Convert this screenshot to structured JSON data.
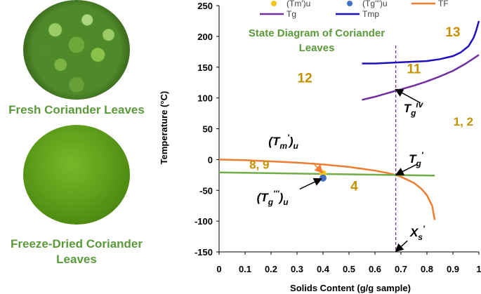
{
  "images": {
    "fresh_caption": "Fresh Coriander Leaves",
    "dried_caption": "Freeze-Dried Coriander Leaves"
  },
  "chart_data": {
    "type": "line",
    "title": "State Diagram of Coriander Leaves",
    "xlabel": "Solids Content (g/g sample)",
    "ylabel": "Temperature (°C)",
    "xlim": [
      0,
      1
    ],
    "ylim": [
      -150,
      250
    ],
    "x_ticks": [
      0,
      0.1,
      0.2,
      0.3,
      0.4,
      0.5,
      0.6,
      0.7,
      0.8,
      0.9,
      1
    ],
    "y_ticks": [
      -150,
      -100,
      -50,
      0,
      50,
      100,
      150,
      200,
      250
    ],
    "grid": false,
    "legend_position": "top",
    "colors": {
      "TF": "#ed7d31",
      "Tg": "#7030a0",
      "Tmp": "#1f0fbf",
      "Tm_u": "#f5c518",
      "Tg_u": "#4472c4",
      "line": "#70ad47",
      "region": "#c59100",
      "title": "#5b9a3b"
    },
    "series": [
      {
        "name": "TF",
        "color": "#ed7d31",
        "x": [
          0,
          0.1,
          0.2,
          0.3,
          0.4,
          0.5,
          0.55,
          0.6,
          0.65,
          0.68,
          0.7,
          0.75,
          0.78,
          0.8,
          0.82,
          0.83
        ],
        "y": [
          0,
          -1,
          -3,
          -5,
          -8,
          -12,
          -15,
          -18,
          -22,
          -25,
          -28,
          -38,
          -48,
          -58,
          -75,
          -98
        ]
      },
      {
        "name": "Tg",
        "color": "#7030a0",
        "x": [
          0.55,
          0.6,
          0.65,
          0.7,
          0.75,
          0.8,
          0.85,
          0.9,
          0.95,
          1.0
        ],
        "y": [
          97,
          102,
          108,
          114,
          120,
          127,
          135,
          144,
          156,
          170
        ]
      },
      {
        "name": "Tmp",
        "color": "#1f0fbf",
        "x": [
          0.55,
          0.6,
          0.65,
          0.7,
          0.75,
          0.8,
          0.85,
          0.9,
          0.93,
          0.96,
          0.98,
          0.99,
          1.0
        ],
        "y": [
          156,
          156,
          157,
          158,
          159,
          160,
          163,
          168,
          174,
          184,
          198,
          210,
          225
        ]
      },
      {
        "name": "",
        "color": "#70ad47",
        "x": [
          0,
          0.83
        ],
        "y": [
          -21,
          -26
        ]
      }
    ],
    "points": [
      {
        "name": "(Tm')u",
        "x": 0.4,
        "y": -23,
        "color": "#f5c518"
      },
      {
        "name": "(Tg''')u",
        "x": 0.4,
        "y": -30,
        "color": "#4472c4"
      }
    ],
    "vline": {
      "x": 0.68,
      "color": "#7030a0"
    },
    "legend": [
      {
        "label": "(Tm')u",
        "kind": "dot",
        "color": "#f5c518"
      },
      {
        "label": "(Tg''')u",
        "kind": "dot",
        "color": "#4472c4"
      },
      {
        "label": "TF",
        "kind": "line",
        "color": "#ed7d31"
      },
      {
        "label": "Tg",
        "kind": "line",
        "color": "#7030a0"
      },
      {
        "label": "Tmp",
        "kind": "line",
        "color": "#1f0fbf"
      }
    ],
    "region_labels": [
      {
        "text": "13",
        "x": 0.9,
        "y": 200
      },
      {
        "text": "11",
        "x": 0.75,
        "y": 140
      },
      {
        "text": "12",
        "x": 0.33,
        "y": 125
      },
      {
        "text": "1, 2",
        "x": 0.94,
        "y": 55
      },
      {
        "text": "8, 9",
        "x": 0.155,
        "y": -15
      },
      {
        "text": "4",
        "x": 0.52,
        "y": -50
      }
    ],
    "annotations": [
      {
        "id": "tg-iv",
        "main": "T",
        "sub": "g",
        "sup": "iv",
        "tx": 0.71,
        "ty": 77,
        "ax": 0.775,
        "ay": 92,
        "hx": 0.683,
        "hy": 113
      },
      {
        "id": "tg-prime",
        "main": "T",
        "sub": "g",
        "sup": "'",
        "tx": 0.73,
        "ty": -5,
        "ax": 0.76,
        "ay": -8,
        "hx": 0.685,
        "hy": -24
      },
      {
        "id": "tm-prime-u",
        "main": "(T",
        "sub": "m",
        "sup": "'",
        "end": ")u",
        "tx": 0.19,
        "ty": 23,
        "ax": 0.36,
        "ay": -5,
        "hx": 0.395,
        "hy": -20
      },
      {
        "id": "tg3-u",
        "main": "(T",
        "sub": "g",
        "sup": "'''",
        "end": ")u",
        "tx": 0.145,
        "ty": -68,
        "ax": 0.31,
        "ay": -48,
        "hx": 0.39,
        "hy": -32
      },
      {
        "id": "xs-prime",
        "main": "X",
        "sub": "s",
        "sup": "'",
        "tx": 0.735,
        "ty": -125,
        "ax": 0.725,
        "ay": -132,
        "hx": 0.683,
        "hy": -148
      }
    ]
  }
}
